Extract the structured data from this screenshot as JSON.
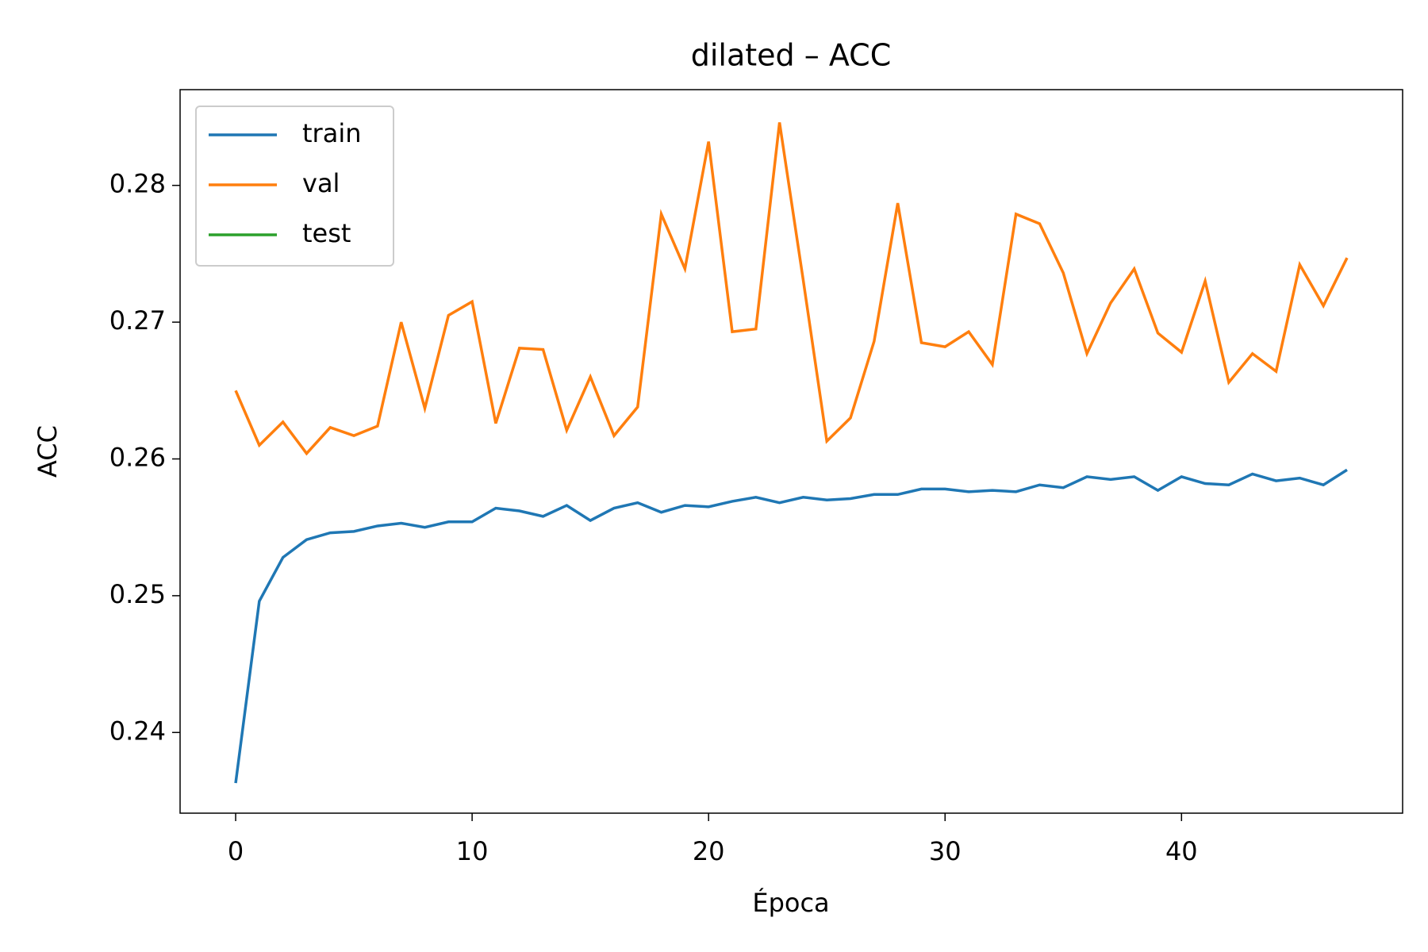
{
  "chart_data": {
    "type": "line",
    "title": "dilated – ACC",
    "xlabel": "Época",
    "ylabel": "ACC",
    "x": [
      0,
      1,
      2,
      3,
      4,
      5,
      6,
      7,
      8,
      9,
      10,
      11,
      12,
      13,
      14,
      15,
      16,
      17,
      18,
      19,
      20,
      21,
      22,
      23,
      24,
      25,
      26,
      27,
      28,
      29,
      30,
      31,
      32,
      33,
      34,
      35,
      36,
      37,
      38,
      39,
      40,
      41,
      42,
      43,
      44,
      45,
      46,
      47
    ],
    "series": [
      {
        "name": "train",
        "color": "#1f77b4",
        "values": [
          0.2363,
          0.2496,
          0.2528,
          0.2541,
          0.2546,
          0.2547,
          0.2551,
          0.2553,
          0.255,
          0.2554,
          0.2554,
          0.2564,
          0.2562,
          0.2558,
          0.2566,
          0.2555,
          0.2564,
          0.2568,
          0.2561,
          0.2566,
          0.2565,
          0.2569,
          0.2572,
          0.2568,
          0.2572,
          0.257,
          0.2571,
          0.2574,
          0.2574,
          0.2578,
          0.2578,
          0.2576,
          0.2577,
          0.2576,
          0.2581,
          0.2579,
          0.2587,
          0.2585,
          0.2587,
          0.2577,
          0.2587,
          0.2582,
          0.2581,
          0.2589,
          0.2584,
          0.2586,
          0.2581,
          0.2592
        ]
      },
      {
        "name": "val",
        "color": "#ff7f0e",
        "values": [
          0.265,
          0.261,
          0.2627,
          0.2604,
          0.2623,
          0.2617,
          0.2624,
          0.27,
          0.2637,
          0.2705,
          0.2715,
          0.2626,
          0.2681,
          0.268,
          0.2621,
          0.266,
          0.2617,
          0.2638,
          0.2779,
          0.2739,
          0.2832,
          0.2693,
          0.2695,
          0.2846,
          0.2731,
          0.2613,
          0.263,
          0.2686,
          0.2787,
          0.2685,
          0.2682,
          0.2693,
          0.2669,
          0.2779,
          0.2772,
          0.2736,
          0.2677,
          0.2714,
          0.2739,
          0.2692,
          0.2678,
          0.273,
          0.2656,
          0.2677,
          0.2664,
          0.2742,
          0.2712,
          0.2747
        ]
      },
      {
        "name": "test",
        "color": "#2ca02c",
        "values": [
          null,
          null,
          null,
          null,
          null,
          null,
          null,
          null,
          null,
          null,
          null,
          null,
          null,
          null,
          null,
          null,
          null,
          null,
          null,
          null,
          null,
          null,
          null,
          null,
          null,
          null,
          null,
          null,
          null,
          null,
          null,
          null,
          null,
          null,
          null,
          null,
          null,
          null,
          null,
          null,
          null,
          null,
          null,
          null,
          null,
          null,
          null,
          null
        ]
      }
    ],
    "xlim": [
      -2.35,
      49.35
    ],
    "xticks": [
      0,
      10,
      20,
      30,
      40
    ],
    "ylim": [
      0.2341,
      0.287
    ],
    "yticks": [
      0.24,
      0.25,
      0.26,
      0.27,
      0.28
    ],
    "legend": "upper left"
  }
}
